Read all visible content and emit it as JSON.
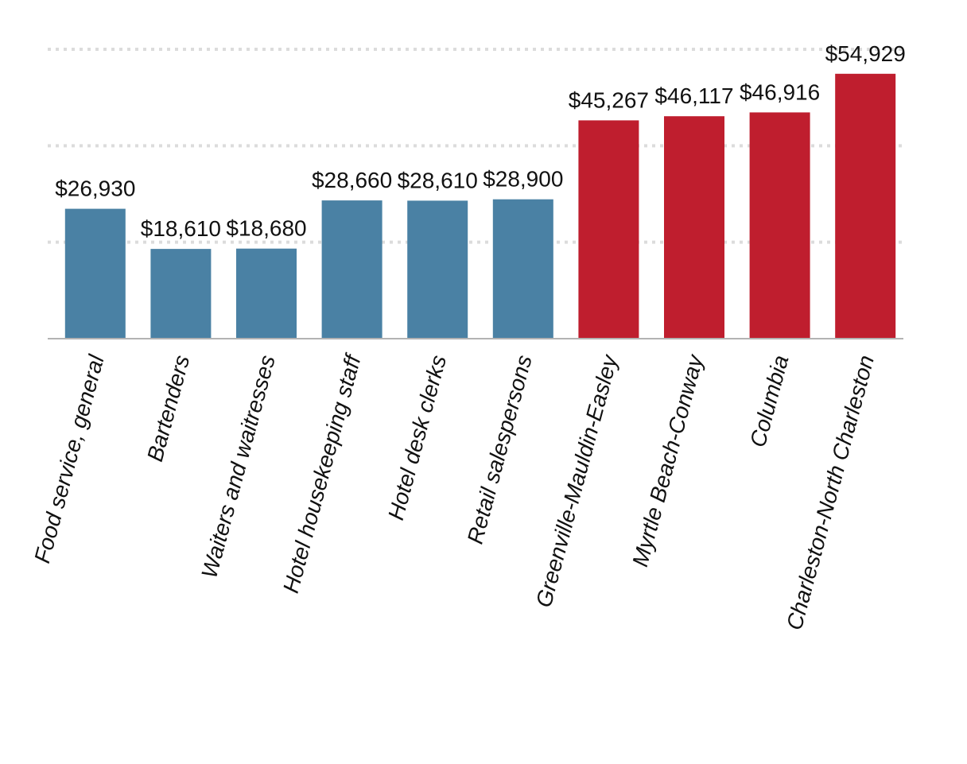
{
  "chart_data": {
    "type": "bar",
    "title": "",
    "xlabel": "",
    "ylabel": "",
    "ylim": [
      0,
      60000
    ],
    "grid": true,
    "gridlines": [
      20000,
      40000,
      60000
    ],
    "categories": [
      "Food service, general",
      "Bartenders",
      "Waiters and waitresses",
      "Hotel housekeeping staff",
      "Hotel desk clerks",
      "Retail salespersons",
      "Greenville-Mauldin-Easley",
      "Myrtle Beach-Conway",
      "Columbia",
      "Charleston-North Charleston"
    ],
    "values": [
      26930,
      18610,
      18680,
      28660,
      28610,
      28900,
      45267,
      46117,
      46916,
      54929
    ],
    "data_labels": [
      "$26,930",
      "$18,610",
      "$18,680",
      "$28,660",
      "$28,610",
      "$28,900",
      "$45,267",
      "$46,117",
      "$46,916",
      "$54,929"
    ],
    "bar_colors": [
      "#4a81a4",
      "#4a81a4",
      "#4a81a4",
      "#4a81a4",
      "#4a81a4",
      "#4a81a4",
      "#bf1e2e",
      "#bf1e2e",
      "#bf1e2e",
      "#bf1e2e"
    ]
  }
}
